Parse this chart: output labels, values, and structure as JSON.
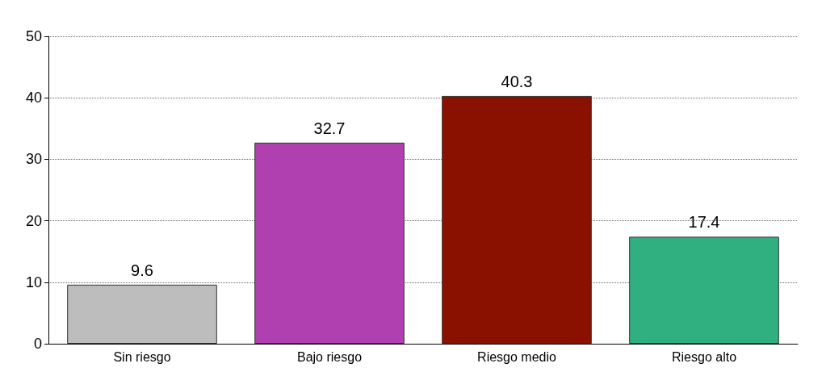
{
  "chart_data": {
    "type": "bar",
    "categories": [
      "Sin riesgo",
      "Bajo riesgo",
      "Riesgo medio",
      "Riesgo alto"
    ],
    "values": [
      9.6,
      32.7,
      40.3,
      17.4
    ],
    "colors": [
      "#bdbdbd",
      "#b040b0",
      "#8a1000",
      "#30b080"
    ],
    "ylim": [
      0,
      50
    ],
    "yticks": [
      0,
      10,
      20,
      30,
      40,
      50
    ],
    "grid": "y",
    "data_labels": true
  }
}
